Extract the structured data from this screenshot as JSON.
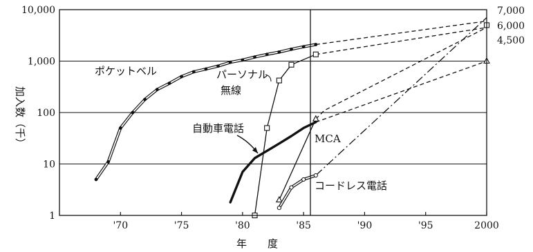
{
  "chart_data": {
    "type": "line",
    "title": "",
    "xlabel": "年　　度",
    "ylabel": "加入数（千）",
    "yscale": "log",
    "ylim": [
      1,
      10000
    ],
    "xlim": [
      1965,
      2000
    ],
    "grid": true,
    "x_ticks": [
      {
        "value": 1970,
        "label": "'70"
      },
      {
        "value": 1975,
        "label": "'75"
      },
      {
        "value": 1980,
        "label": "'80"
      },
      {
        "value": 1985,
        "label": "'85"
      },
      {
        "value": 1990,
        "label": "'90"
      },
      {
        "value": 1995,
        "label": "'95"
      },
      {
        "value": 2000,
        "label": "2000"
      }
    ],
    "y_ticks": [
      {
        "value": 1,
        "label": "1"
      },
      {
        "value": 10,
        "label": "10"
      },
      {
        "value": 100,
        "label": "100"
      },
      {
        "value": 1000,
        "label": "1,000"
      },
      {
        "value": 10000,
        "label": "10,000"
      }
    ],
    "right_labels": [
      "7,000",
      "6,000",
      "4,500"
    ],
    "series": [
      {
        "name": "ポケットベル",
        "style": "double",
        "marker": "dot",
        "values": [
          [
            1968,
            5
          ],
          [
            1969,
            11
          ],
          [
            1970,
            50
          ],
          [
            1971,
            100
          ],
          [
            1972,
            180
          ],
          [
            1973,
            280
          ],
          [
            1974,
            370
          ],
          [
            1975,
            500
          ],
          [
            1976,
            620
          ],
          [
            1977,
            700
          ],
          [
            1978,
            800
          ],
          [
            1979,
            950
          ],
          [
            1980,
            1050
          ],
          [
            1981,
            1200
          ],
          [
            1982,
            1350
          ],
          [
            1983,
            1500
          ],
          [
            1984,
            1700
          ],
          [
            1985,
            1900
          ],
          [
            1986,
            2100
          ]
        ],
        "forecast": [
          [
            [
              1986,
              2100
            ],
            [
              2000,
              6000
            ]
          ]
        ]
      },
      {
        "name": "パーソナル無線",
        "style": "thin",
        "marker": "square",
        "values": [
          [
            1981,
            1
          ],
          [
            1982,
            50
          ],
          [
            1983,
            420
          ],
          [
            1984,
            850
          ],
          [
            1986,
            1350
          ]
        ],
        "forecast": [
          [
            [
              1986,
              1350
            ],
            [
              2000,
              4500
            ]
          ]
        ]
      },
      {
        "name": "自動車電話",
        "style": "bold",
        "marker": "none",
        "values": [
          [
            1979,
            1.8
          ],
          [
            1980,
            7
          ],
          [
            1981,
            13
          ],
          [
            1982,
            18
          ],
          [
            1983,
            25
          ],
          [
            1984,
            35
          ],
          [
            1985,
            50
          ],
          [
            1986,
            65
          ]
        ],
        "forecast": [
          [
            [
              1986,
              65
            ],
            [
              2000,
              1000
            ]
          ]
        ]
      },
      {
        "name": "MCA",
        "style": "thin",
        "marker": "triangle",
        "values": [
          [
            1983,
            2
          ],
          [
            1986,
            75
          ]
        ],
        "forecast": [
          [
            [
              1986,
              75
            ],
            [
              1986.7,
              110
            ],
            [
              2000,
              4500
            ]
          ]
        ]
      },
      {
        "name": "コードレス電話",
        "style": "double",
        "marker": "circle",
        "values": [
          [
            1983,
            1.4
          ],
          [
            1984,
            3.5
          ],
          [
            1985,
            5
          ],
          [
            1986,
            6
          ]
        ],
        "forecast": [
          [
            [
              1986,
              6
            ],
            [
              2000,
              7000
            ]
          ]
        ],
        "forecast_style": "dashdot"
      }
    ],
    "end_markers": [
      {
        "x": 2000,
        "y": 5000,
        "marker": "square"
      },
      {
        "x": 2000,
        "y": 1000,
        "marker": "triangle"
      }
    ]
  }
}
